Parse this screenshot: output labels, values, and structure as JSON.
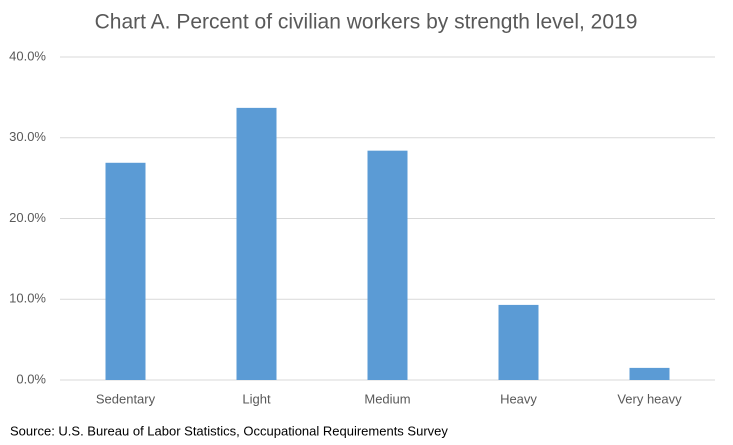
{
  "chart_data": {
    "type": "bar",
    "title": "Chart A. Percent of civilian workers by strength level, 2019",
    "categories": [
      "Sedentary",
      "Light",
      "Medium",
      "Heavy",
      "Very heavy"
    ],
    "values": [
      26.9,
      33.7,
      28.4,
      9.3,
      1.5
    ],
    "color": "#5b9bd5",
    "ylim": [
      0,
      40
    ],
    "yticks": [
      {
        "value": 0,
        "label": "0.0%"
      },
      {
        "value": 10,
        "label": "10.0%"
      },
      {
        "value": 20,
        "label": "20.0%"
      },
      {
        "value": 30,
        "label": "30.0%"
      },
      {
        "value": 40,
        "label": "40.0%"
      }
    ],
    "grid": true,
    "source": "Source: U.S. Bureau of Labor Statistics, Occupational Requirements Survey"
  }
}
